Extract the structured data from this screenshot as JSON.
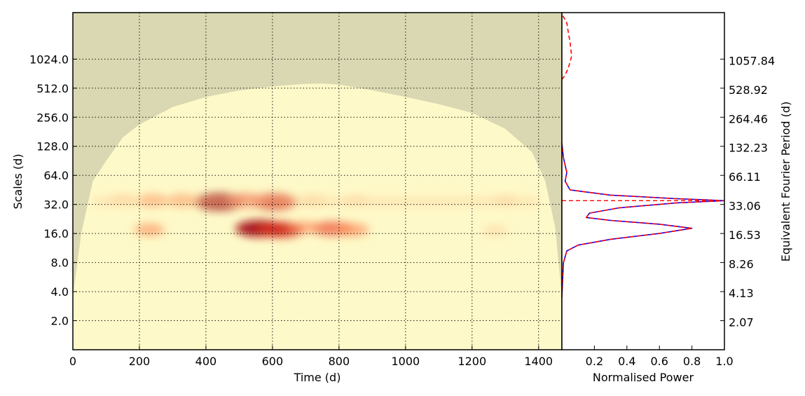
{
  "chart_data": [
    {
      "type": "heatmap",
      "xlabel": "Time (d)",
      "ylabel": "Scales (d)",
      "secondary_ylabel": "Equivalent Fourier Period (d)",
      "xlim": [
        0,
        1470
      ],
      "ylim_log2": [
        0,
        11.6
      ],
      "y_scale": "log2",
      "x_ticks": [
        "0",
        "200",
        "400",
        "600",
        "800",
        "1000",
        "1200",
        "1400"
      ],
      "x_tick_values": [
        0,
        200,
        400,
        600,
        800,
        1000,
        1200,
        1400
      ],
      "y_ticks": [
        "2.0",
        "4.0",
        "8.0",
        "16.0",
        "32.0",
        "64.0",
        "128.0",
        "256.0",
        "512.0",
        "1024.0"
      ],
      "y_tick_values": [
        2,
        4,
        8,
        16,
        32,
        64,
        128,
        256,
        512,
        1024
      ],
      "secondary_y_ticks": [
        "2.07",
        "4.13",
        "8.26",
        "16.53",
        "33.06",
        "66.11",
        "132.23",
        "264.46",
        "528.92",
        "1057.84"
      ],
      "grid": true,
      "colors": {
        "background": "#fef9c8",
        "cone": "#d6d5b0",
        "hot": "#d7301f",
        "peak": "#8c0010"
      },
      "cone_of_influence": [
        [
          0,
          1.8
        ],
        [
          25,
          4.0
        ],
        [
          60,
          5.8
        ],
        [
          100,
          6.5
        ],
        [
          150,
          7.3
        ],
        [
          200,
          7.75
        ],
        [
          300,
          8.35
        ],
        [
          400,
          8.7
        ],
        [
          500,
          8.92
        ],
        [
          600,
          9.06
        ],
        [
          700,
          9.15
        ],
        [
          750,
          9.16
        ],
        [
          800,
          9.12
        ],
        [
          900,
          8.93
        ],
        [
          1000,
          8.7
        ],
        [
          1100,
          8.45
        ],
        [
          1200,
          8.15
        ],
        [
          1300,
          7.6
        ],
        [
          1380,
          6.8
        ],
        [
          1420,
          5.8
        ],
        [
          1450,
          4.2
        ],
        [
          1470,
          1.8
        ]
      ],
      "power_blobs": [
        {
          "t": 440,
          "scale": 34,
          "intensity": 1.0
        },
        {
          "t": 605,
          "scale": 34,
          "intensity": 0.85
        },
        {
          "t": 520,
          "scale": 35,
          "intensity": 0.6
        },
        {
          "t": 330,
          "scale": 35,
          "intensity": 0.4
        },
        {
          "t": 240,
          "scale": 35,
          "intensity": 0.38
        },
        {
          "t": 150,
          "scale": 36,
          "intensity": 0.3
        },
        {
          "t": 720,
          "scale": 35,
          "intensity": 0.28
        },
        {
          "t": 850,
          "scale": 35,
          "intensity": 0.18
        },
        {
          "t": 565,
          "scale": 18,
          "intensity": 1.0
        },
        {
          "t": 625,
          "scale": 17.5,
          "intensity": 0.85
        },
        {
          "t": 780,
          "scale": 18,
          "intensity": 0.7
        },
        {
          "t": 840,
          "scale": 17.5,
          "intensity": 0.45
        },
        {
          "t": 700,
          "scale": 18.5,
          "intensity": 0.35
        },
        {
          "t": 230,
          "scale": 17.5,
          "intensity": 0.35
        },
        {
          "t": 1270,
          "scale": 17,
          "intensity": 0.2
        },
        {
          "t": 1300,
          "scale": 35,
          "intensity": 0.15
        }
      ]
    },
    {
      "type": "line",
      "xlabel": "Normalised Power",
      "xlim": [
        0,
        1.0
      ],
      "x_ticks": [
        "0.2",
        "0.4",
        "0.6",
        "0.8",
        "1.0"
      ],
      "x_tick_values": [
        0.2,
        0.4,
        0.6,
        0.8,
        1.0
      ],
      "y_scale": "log2",
      "series": [
        {
          "style": "solid",
          "color": "#0000ff",
          "points": [
            [
              0.0,
              1.8
            ],
            [
              0.005,
              2.5
            ],
            [
              0.01,
              3.0
            ],
            [
              0.03,
              3.4
            ],
            [
              0.1,
              3.6
            ],
            [
              0.3,
              3.8
            ],
            [
              0.6,
              4.0
            ],
            [
              0.8,
              4.18
            ],
            [
              0.6,
              4.32
            ],
            [
              0.3,
              4.45
            ],
            [
              0.15,
              4.55
            ],
            [
              0.17,
              4.7
            ],
            [
              0.35,
              4.88
            ],
            [
              0.7,
              5.05
            ],
            [
              1.0,
              5.13
            ],
            [
              0.7,
              5.2
            ],
            [
              0.3,
              5.32
            ],
            [
              0.05,
              5.5
            ],
            [
              0.02,
              5.8
            ],
            [
              0.03,
              6.1
            ],
            [
              0.01,
              6.6
            ],
            [
              0.0,
              7.1
            ]
          ]
        },
        {
          "style": "dashed",
          "color": "#ff0000",
          "points": [
            [
              0.0,
              1.8
            ],
            [
              0.005,
              2.5
            ],
            [
              0.01,
              3.0
            ],
            [
              0.03,
              3.4
            ],
            [
              0.1,
              3.6
            ],
            [
              0.3,
              3.8
            ],
            [
              0.6,
              4.0
            ],
            [
              0.8,
              4.18
            ],
            [
              0.6,
              4.32
            ],
            [
              0.3,
              4.45
            ],
            [
              0.15,
              4.55
            ],
            [
              0.17,
              4.7
            ],
            [
              0.35,
              4.88
            ],
            [
              0.7,
              5.05
            ],
            [
              1.0,
              5.13
            ],
            [
              0.7,
              5.2
            ],
            [
              0.3,
              5.32
            ],
            [
              0.05,
              5.5
            ],
            [
              0.02,
              5.8
            ],
            [
              0.03,
              6.1
            ],
            [
              0.01,
              6.6
            ],
            [
              0.0,
              7.1
            ]
          ]
        },
        {
          "style": "dashed",
          "color": "#ff0000",
          "points": [
            [
              0.0,
              9.3
            ],
            [
              0.02,
              9.45
            ],
            [
              0.04,
              9.7
            ],
            [
              0.06,
              10.1
            ],
            [
              0.05,
              10.6
            ],
            [
              0.04,
              10.9
            ],
            [
              0.03,
              11.25
            ],
            [
              0.0,
              11.55
            ]
          ]
        }
      ],
      "hline": {
        "y": 5.13,
        "style": "dashed",
        "color": "#ff0000"
      }
    }
  ]
}
